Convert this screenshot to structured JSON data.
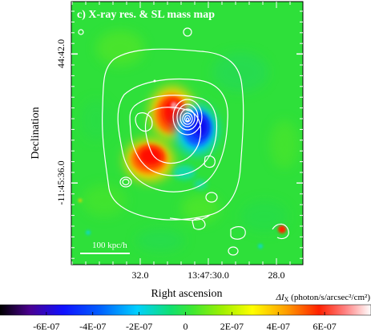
{
  "chart_data": {
    "type": "heatmap",
    "title": "c) X-ray res. & SL mass map",
    "xlabel": "Right ascension",
    "ylabel": "Declination",
    "x_ticks": [
      "32.0",
      "13:47:30.0",
      "28.0"
    ],
    "y_ticks": [
      "44:42.0",
      "-11:45:36.0"
    ],
    "scale_bar_label": "100 kpc/h",
    "colorbar": {
      "label": "ΔI_X (photon/s/arcsec²/cm²)",
      "label_main": "ΔI",
      "label_sub": "X",
      "label_units": " (photon/s/arcsec²/cm²)",
      "ticks": [
        "-6E-07",
        "-4E-07",
        "-2E-07",
        "0",
        "2E-07",
        "4E-07",
        "6E-07"
      ],
      "tick_values": [
        -6e-07,
        -4e-07,
        -2e-07,
        0,
        2e-07,
        4e-07,
        6e-07
      ],
      "range": [
        -8e-07,
        8e-07
      ],
      "colormap": [
        "#000000",
        "#5000a0",
        "#0020ff",
        "#00c8ff",
        "#30e040",
        "#60f000",
        "#ffff00",
        "#ff8000",
        "#ff0000",
        "#ffffff"
      ]
    },
    "map_background_color": "#2ee03a",
    "contour_color": "#ffffff"
  }
}
